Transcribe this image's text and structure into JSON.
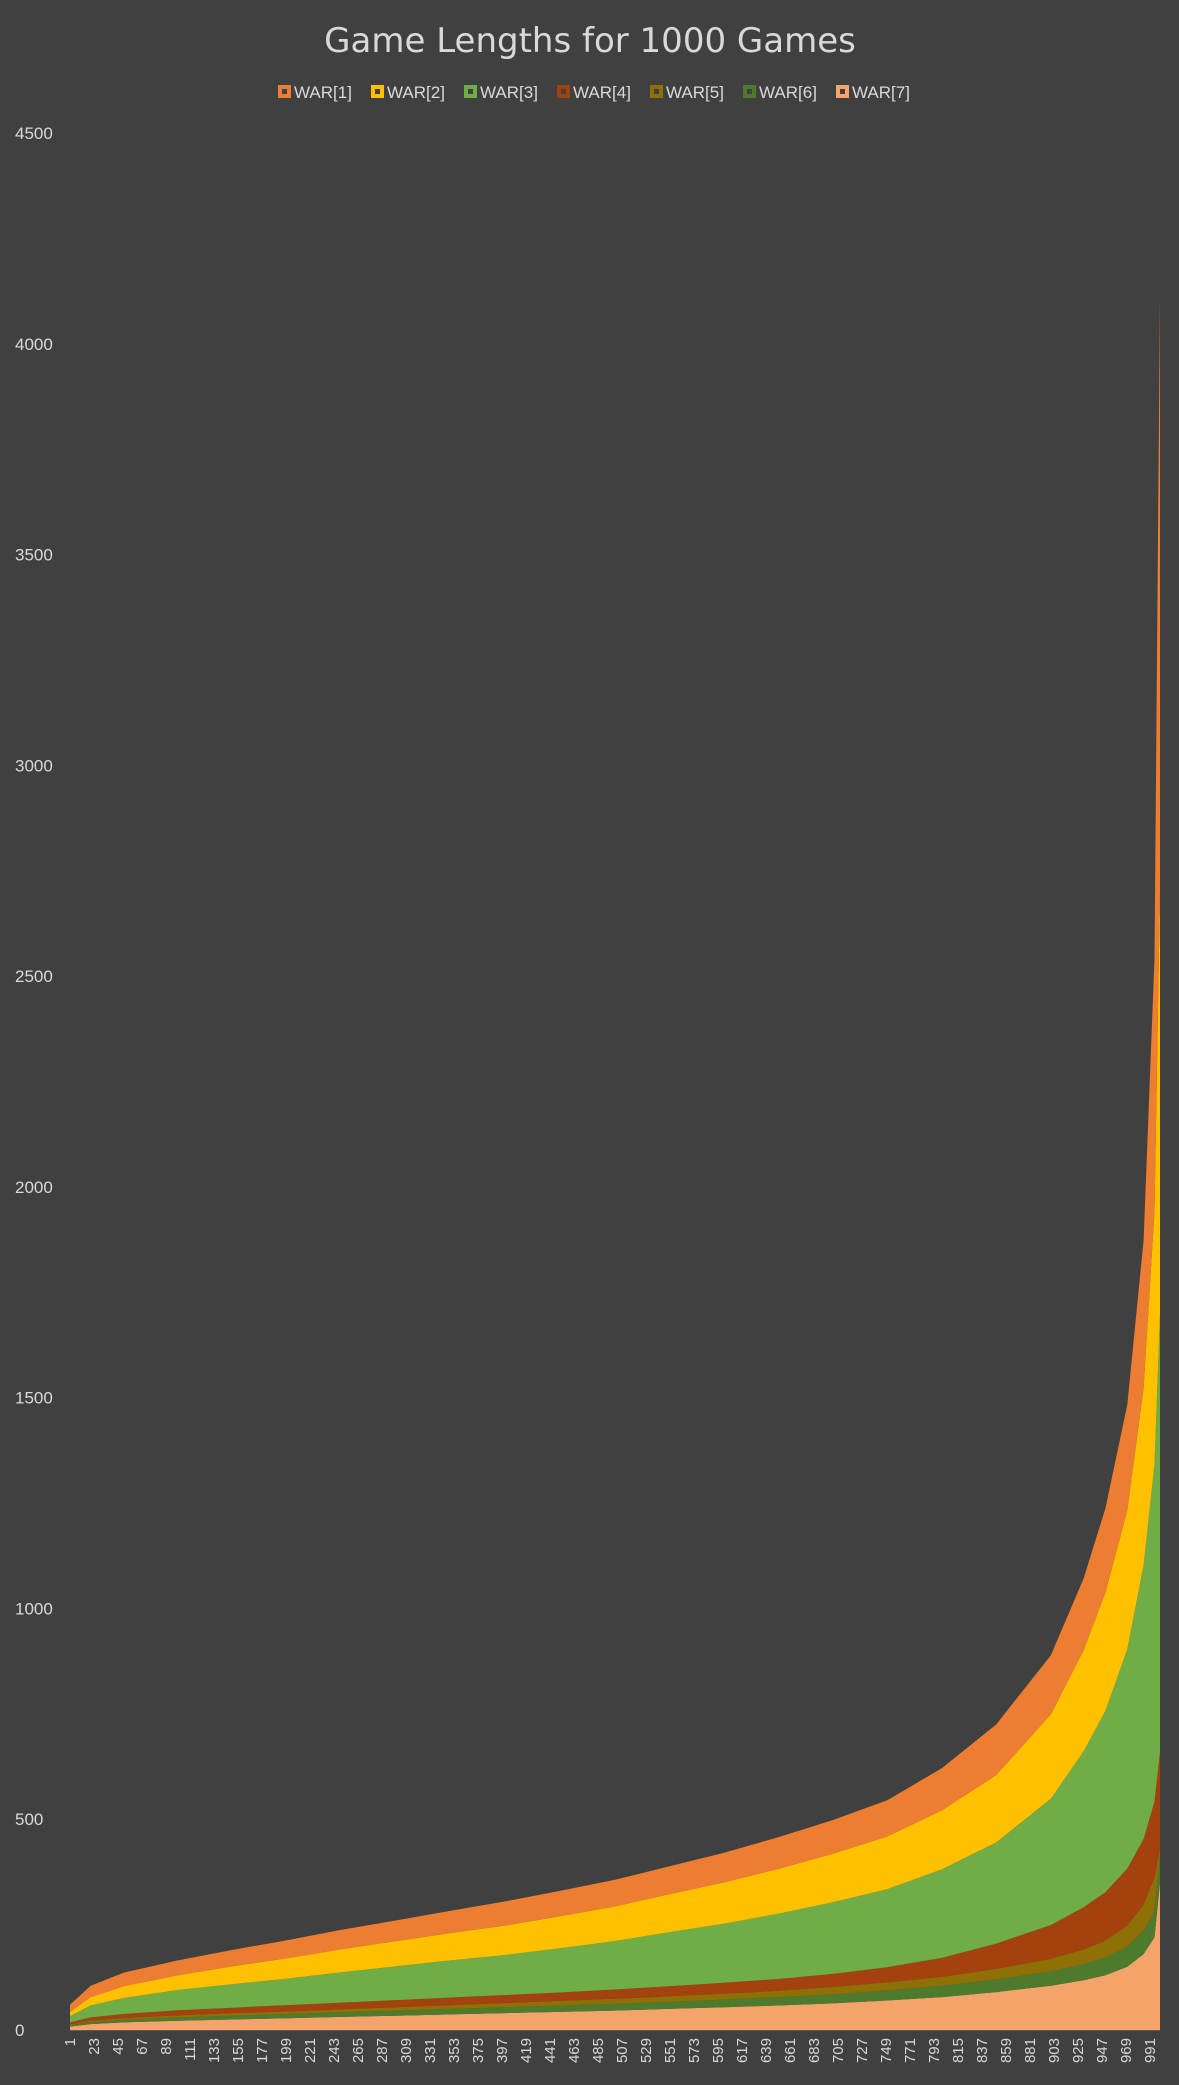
{
  "chart_data": {
    "type": "area",
    "stacked": true,
    "title": "Game Lengths for 1000 Games",
    "xlabel": "",
    "ylabel": "",
    "ylim": [
      0,
      4500
    ],
    "yticks": [
      0,
      500,
      1000,
      1500,
      2000,
      2500,
      3000,
      3500,
      4000,
      4500
    ],
    "x_range": [
      1,
      1000
    ],
    "xticks": [
      1,
      23,
      45,
      67,
      89,
      111,
      133,
      155,
      177,
      199,
      221,
      243,
      265,
      287,
      309,
      331,
      353,
      375,
      397,
      419,
      441,
      463,
      485,
      507,
      529,
      551,
      573,
      595,
      617,
      639,
      661,
      683,
      705,
      727,
      749,
      771,
      793,
      815,
      837,
      859,
      881,
      903,
      925,
      947,
      969,
      991
    ],
    "grid": false,
    "legend_position": "top",
    "x_samples": [
      1,
      20,
      50,
      100,
      150,
      200,
      250,
      300,
      350,
      400,
      450,
      500,
      550,
      600,
      650,
      700,
      750,
      800,
      850,
      900,
      930,
      950,
      970,
      985,
      995,
      1000
    ],
    "series": [
      {
        "name": "WAR[7]",
        "color": "#f4a46a",
        "values": [
          8,
          14,
          18,
          22,
          25,
          28,
          31,
          34,
          37,
          40,
          43,
          46,
          50,
          54,
          58,
          63,
          70,
          78,
          90,
          105,
          118,
          130,
          150,
          180,
          220,
          350
        ]
      },
      {
        "name": "WAR[6]",
        "color": "#4e7a2e",
        "values": [
          3,
          5,
          6,
          8,
          9,
          10,
          11,
          12,
          13,
          14,
          15,
          16,
          17,
          18,
          20,
          22,
          24,
          27,
          30,
          34,
          38,
          42,
          48,
          56,
          62,
          70
        ]
      },
      {
        "name": "WAR[5]",
        "color": "#8f7006",
        "values": [
          2,
          3,
          4,
          5,
          6,
          6,
          7,
          8,
          9,
          10,
          11,
          12,
          13,
          14,
          15,
          17,
          19,
          21,
          25,
          30,
          35,
          40,
          50,
          62,
          80,
          10
        ]
      },
      {
        "name": "WAR[4]",
        "color": "#a3420f",
        "values": [
          5,
          8,
          10,
          12,
          13,
          15,
          16,
          17,
          18,
          19,
          20,
          22,
          24,
          26,
          28,
          31,
          36,
          45,
          60,
          80,
          100,
          115,
          135,
          155,
          180,
          230
        ]
      },
      {
        "name": "WAR[3]",
        "color": "#70ad47",
        "values": [
          15,
          28,
          38,
          48,
          56,
          63,
          72,
          80,
          88,
          95,
          105,
          115,
          128,
          140,
          155,
          170,
          185,
          210,
          240,
          300,
          370,
          430,
          520,
          650,
          800,
          1040
        ]
      },
      {
        "name": "WAR[2]",
        "color": "#ffc000",
        "values": [
          10,
          20,
          28,
          35,
          42,
          48,
          55,
          60,
          65,
          70,
          76,
          82,
          90,
          98,
          106,
          115,
          125,
          140,
          160,
          200,
          240,
          280,
          330,
          420,
          600,
          1000
        ]
      },
      {
        "name": "WAR[1]",
        "color": "#ed7d31",
        "values": [
          17,
          27,
          32,
          35,
          39,
          43,
          46,
          49,
          53,
          57,
          60,
          63,
          66,
          70,
          75,
          80,
          86,
          100,
          120,
          140,
          170,
          200,
          250,
          350,
          600,
          1410
        ]
      }
    ]
  }
}
